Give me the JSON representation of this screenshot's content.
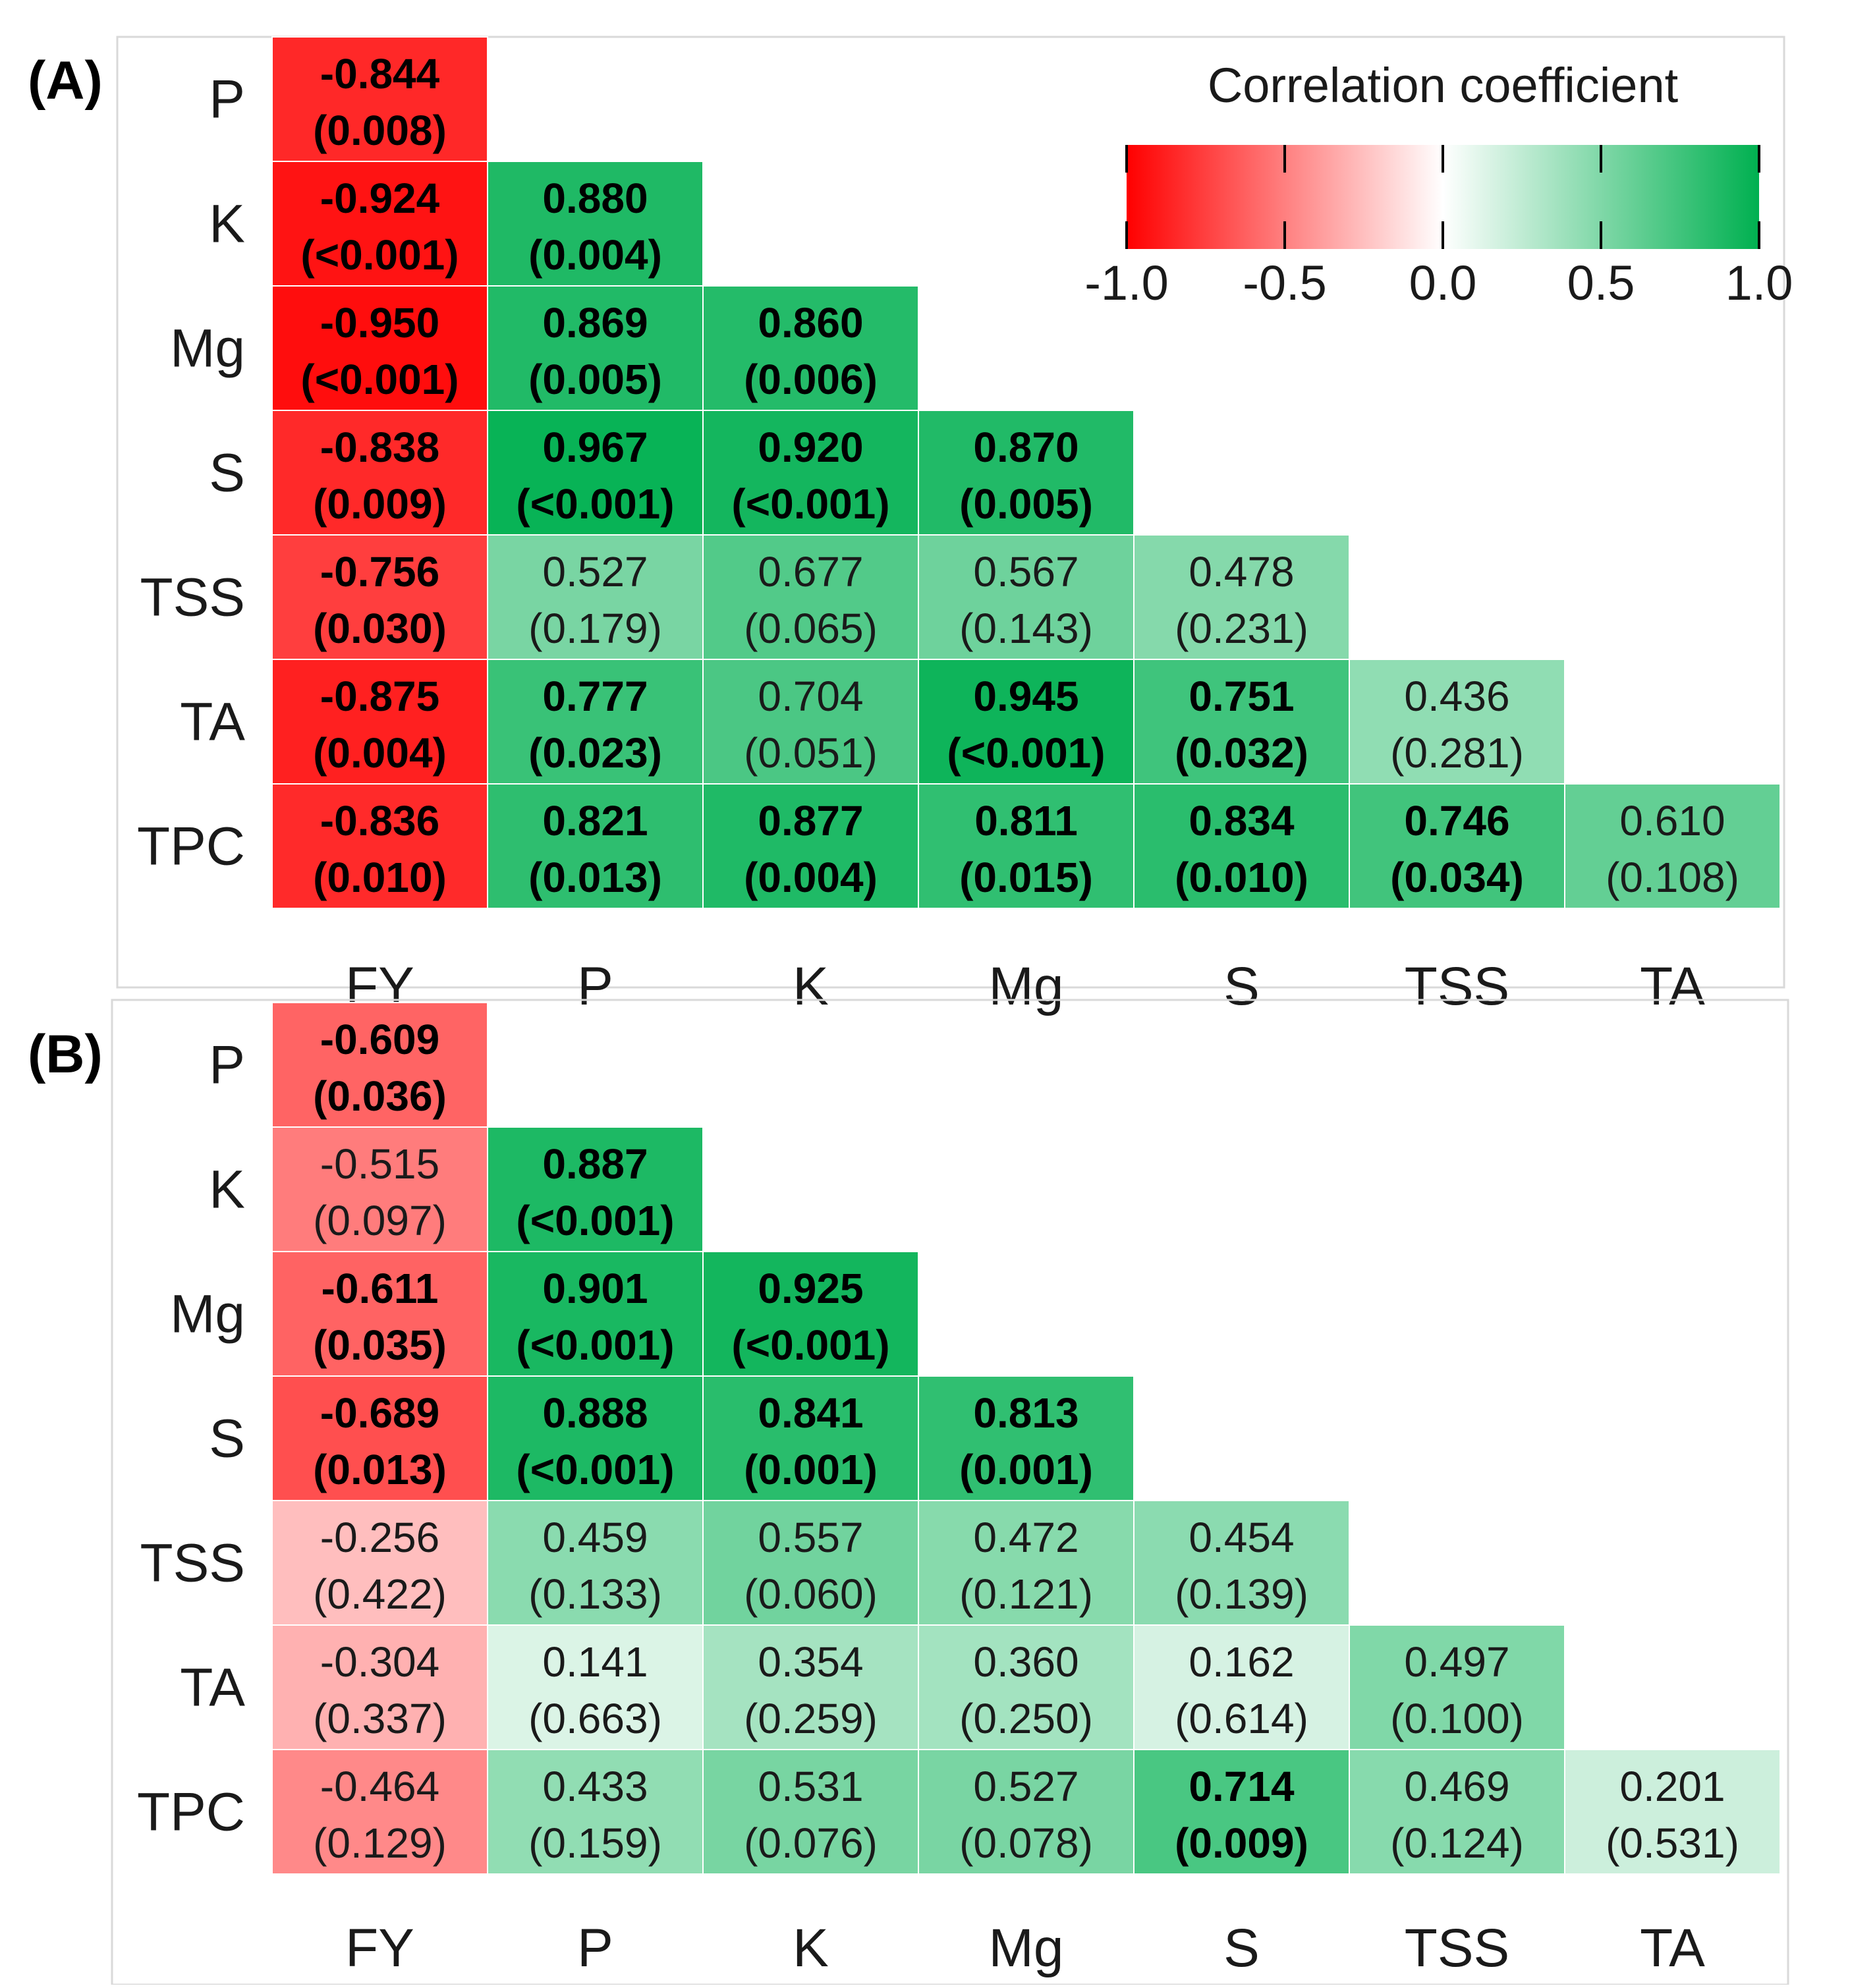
{
  "chart_data": [
    {
      "type": "heatmap",
      "panel_label": "(A)",
      "row_labels": [
        "P",
        "K",
        "Mg",
        "S",
        "TSS",
        "TA",
        "TPC"
      ],
      "col_labels": [
        "FY",
        "P",
        "K",
        "Mg",
        "S",
        "TSS",
        "TA"
      ],
      "cells": [
        [
          {
            "r": "-0.844",
            "p": "(0.008)",
            "bold": true
          }
        ],
        [
          {
            "r": "-0.924",
            "p": "(<0.001)",
            "bold": true
          },
          {
            "r": "0.880",
            "p": "(0.004)",
            "bold": true
          }
        ],
        [
          {
            "r": "-0.950",
            "p": "(<0.001)",
            "bold": true
          },
          {
            "r": "0.869",
            "p": "(0.005)",
            "bold": true
          },
          {
            "r": "0.860",
            "p": "(0.006)",
            "bold": true
          }
        ],
        [
          {
            "r": "-0.838",
            "p": "(0.009)",
            "bold": true
          },
          {
            "r": "0.967",
            "p": "(<0.001)",
            "bold": true
          },
          {
            "r": "0.920",
            "p": "(<0.001)",
            "bold": true
          },
          {
            "r": "0.870",
            "p": "(0.005)",
            "bold": true
          }
        ],
        [
          {
            "r": "-0.756",
            "p": "(0.030)",
            "bold": true
          },
          {
            "r": "0.527",
            "p": "(0.179)",
            "bold": false
          },
          {
            "r": "0.677",
            "p": "(0.065)",
            "bold": false
          },
          {
            "r": "0.567",
            "p": "(0.143)",
            "bold": false
          },
          {
            "r": "0.478",
            "p": "(0.231)",
            "bold": false
          }
        ],
        [
          {
            "r": "-0.875",
            "p": "(0.004)",
            "bold": true
          },
          {
            "r": "0.777",
            "p": "(0.023)",
            "bold": true
          },
          {
            "r": "0.704",
            "p": "(0.051)",
            "bold": false
          },
          {
            "r": "0.945",
            "p": "(<0.001)",
            "bold": true
          },
          {
            "r": "0.751",
            "p": "(0.032)",
            "bold": true
          },
          {
            "r": "0.436",
            "p": "(0.281)",
            "bold": false
          }
        ],
        [
          {
            "r": "-0.836",
            "p": "(0.010)",
            "bold": true
          },
          {
            "r": "0.821",
            "p": "(0.013)",
            "bold": true
          },
          {
            "r": "0.877",
            "p": "(0.004)",
            "bold": true
          },
          {
            "r": "0.811",
            "p": "(0.015)",
            "bold": true
          },
          {
            "r": "0.834",
            "p": "(0.010)",
            "bold": true
          },
          {
            "r": "0.746",
            "p": "(0.034)",
            "bold": true
          },
          {
            "r": "0.610",
            "p": "(0.108)",
            "bold": false
          }
        ]
      ],
      "legend": {
        "title": "Correlation coefficient",
        "ticks": [
          "-1.0",
          "-0.5",
          "0.0",
          "0.5",
          "1.0"
        ],
        "range": [
          -1.0,
          1.0
        ],
        "colors": {
          "negative": "#ff0000",
          "zero": "#ffffff",
          "positive": "#00b050"
        }
      }
    },
    {
      "type": "heatmap",
      "panel_label": "(B)",
      "row_labels": [
        "P",
        "K",
        "Mg",
        "S",
        "TSS",
        "TA",
        "TPC"
      ],
      "col_labels": [
        "FY",
        "P",
        "K",
        "Mg",
        "S",
        "TSS",
        "TA"
      ],
      "cells": [
        [
          {
            "r": "-0.609",
            "p": "(0.036)",
            "bold": true
          }
        ],
        [
          {
            "r": "-0.515",
            "p": "(0.097)",
            "bold": false
          },
          {
            "r": "0.887",
            "p": "(<0.001)",
            "bold": true
          }
        ],
        [
          {
            "r": "-0.611",
            "p": "(0.035)",
            "bold": true
          },
          {
            "r": "0.901",
            "p": "(<0.001)",
            "bold": true
          },
          {
            "r": "0.925",
            "p": "(<0.001)",
            "bold": true
          }
        ],
        [
          {
            "r": "-0.689",
            "p": "(0.013)",
            "bold": true
          },
          {
            "r": "0.888",
            "p": "(<0.001)",
            "bold": true
          },
          {
            "r": "0.841",
            "p": "(0.001)",
            "bold": true
          },
          {
            "r": "0.813",
            "p": "(0.001)",
            "bold": true
          }
        ],
        [
          {
            "r": "-0.256",
            "p": "(0.422)",
            "bold": false
          },
          {
            "r": "0.459",
            "p": "(0.133)",
            "bold": false
          },
          {
            "r": "0.557",
            "p": "(0.060)",
            "bold": false
          },
          {
            "r": "0.472",
            "p": "(0.121)",
            "bold": false
          },
          {
            "r": "0.454",
            "p": "(0.139)",
            "bold": false
          }
        ],
        [
          {
            "r": "-0.304",
            "p": "(0.337)",
            "bold": false
          },
          {
            "r": "0.141",
            "p": "(0.663)",
            "bold": false
          },
          {
            "r": "0.354",
            "p": "(0.259)",
            "bold": false
          },
          {
            "r": "0.360",
            "p": "(0.250)",
            "bold": false
          },
          {
            "r": "0.162",
            "p": "(0.614)",
            "bold": false
          },
          {
            "r": "0.497",
            "p": "(0.100)",
            "bold": false
          }
        ],
        [
          {
            "r": "-0.464",
            "p": "(0.129)",
            "bold": false
          },
          {
            "r": "0.433",
            "p": "(0.159)",
            "bold": false
          },
          {
            "r": "0.531",
            "p": "(0.076)",
            "bold": false
          },
          {
            "r": "0.527",
            "p": "(0.078)",
            "bold": false
          },
          {
            "r": "0.714",
            "p": "(0.009)",
            "bold": true
          },
          {
            "r": "0.469",
            "p": "(0.124)",
            "bold": false
          },
          {
            "r": "0.201",
            "p": "(0.531)",
            "bold": false
          }
        ]
      ]
    }
  ]
}
